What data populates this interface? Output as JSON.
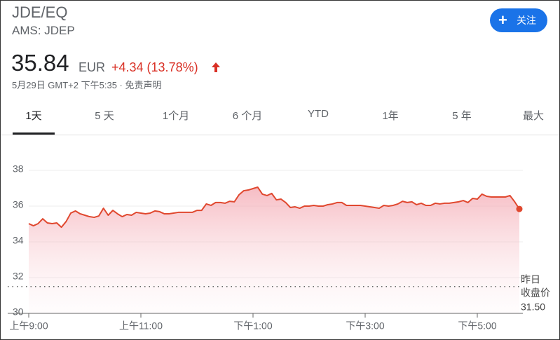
{
  "header": {
    "title": "JDE/EQ",
    "exchange": "AMS: JDEP",
    "follow": "关注",
    "price": "35.84",
    "currency": "EUR",
    "change": "+4.34 (13.78%)",
    "timestamp": "5月29日 GMT+2 下午5:35 ·",
    "disclaimer": "免责声明"
  },
  "tabs": [
    "1天",
    "5 天",
    "1个月",
    "6 个月",
    "YTD",
    "1年",
    "5 年",
    "最大"
  ],
  "chart_data": {
    "type": "line",
    "color": "#e0482f",
    "x": [
      9,
      9.083,
      9.167,
      9.25,
      9.333,
      9.417,
      9.5,
      9.583,
      9.667,
      9.75,
      9.833,
      9.917,
      10,
      10.083,
      10.167,
      10.25,
      10.333,
      10.417,
      10.5,
      10.583,
      10.667,
      10.75,
      10.833,
      10.917,
      11,
      11.083,
      11.167,
      11.25,
      11.333,
      11.417,
      11.5,
      11.583,
      11.667,
      11.75,
      11.833,
      11.917,
      12,
      12.083,
      12.167,
      12.25,
      12.333,
      12.417,
      12.5,
      12.583,
      12.667,
      12.75,
      12.833,
      12.917,
      13,
      13.083,
      13.167,
      13.25,
      13.333,
      13.417,
      13.5,
      13.583,
      13.667,
      13.75,
      13.833,
      13.917,
      14,
      14.083,
      14.167,
      14.25,
      14.333,
      14.417,
      14.5,
      14.583,
      14.667,
      14.75,
      14.833,
      14.917,
      15,
      15.083,
      15.167,
      15.25,
      15.333,
      15.417,
      15.5,
      15.583,
      15.667,
      15.75,
      15.833,
      15.917,
      16,
      16.083,
      16.167,
      16.25,
      16.333,
      16.417,
      16.5,
      16.583,
      16.667,
      16.75,
      16.833,
      16.917,
      17,
      17.083,
      17.167,
      17.25,
      17.333,
      17.417,
      17.5,
      17.583,
      17.667,
      17.75
    ],
    "values": [
      35.02,
      34.9,
      35.02,
      35.29,
      35.06,
      35.02,
      35.06,
      34.82,
      35.14,
      35.61,
      35.73,
      35.57,
      35.49,
      35.41,
      35.37,
      35.45,
      35.88,
      35.49,
      35.76,
      35.57,
      35.41,
      35.53,
      35.49,
      35.65,
      35.61,
      35.57,
      35.61,
      35.73,
      35.69,
      35.57,
      35.57,
      35.61,
      35.65,
      35.65,
      35.65,
      35.65,
      35.76,
      35.76,
      36.12,
      36.04,
      36.2,
      36.2,
      36.16,
      36.27,
      36.24,
      36.63,
      36.86,
      36.9,
      36.98,
      37.06,
      36.67,
      36.59,
      36.71,
      36.35,
      36.39,
      36.2,
      35.92,
      35.96,
      35.88,
      36,
      36,
      36.04,
      36,
      36,
      36.08,
      36.12,
      36.2,
      36.2,
      36.04,
      36.04,
      36.04,
      36.04,
      36,
      35.96,
      35.92,
      35.88,
      36.04,
      36,
      36.04,
      36.12,
      36.27,
      36.2,
      36.24,
      36.08,
      36.16,
      36.04,
      36.04,
      36.16,
      36.12,
      36.16,
      36.16,
      36.2,
      36.24,
      36.31,
      36.2,
      36.43,
      36.39,
      36.67,
      36.55,
      36.51,
      36.51,
      36.51,
      36.51,
      36.59,
      36.24,
      35.84
    ],
    "xlim": [
      9,
      17.75
    ],
    "xticks": [
      {
        "value": 9,
        "label": "上午9:00"
      },
      {
        "value": 11,
        "label": "上午11:00"
      },
      {
        "value": 13,
        "label": "下午1:00"
      },
      {
        "value": 15,
        "label": "下午3:00"
      },
      {
        "value": 17,
        "label": "下午5:00"
      }
    ],
    "ylim": [
      30,
      38
    ],
    "yticks": [
      30,
      32,
      34,
      36,
      38
    ],
    "grid": true,
    "reference": {
      "label_lines": [
        "昨日",
        "收盘价"
      ],
      "value": 31.5,
      "value_label": "31.50"
    }
  }
}
